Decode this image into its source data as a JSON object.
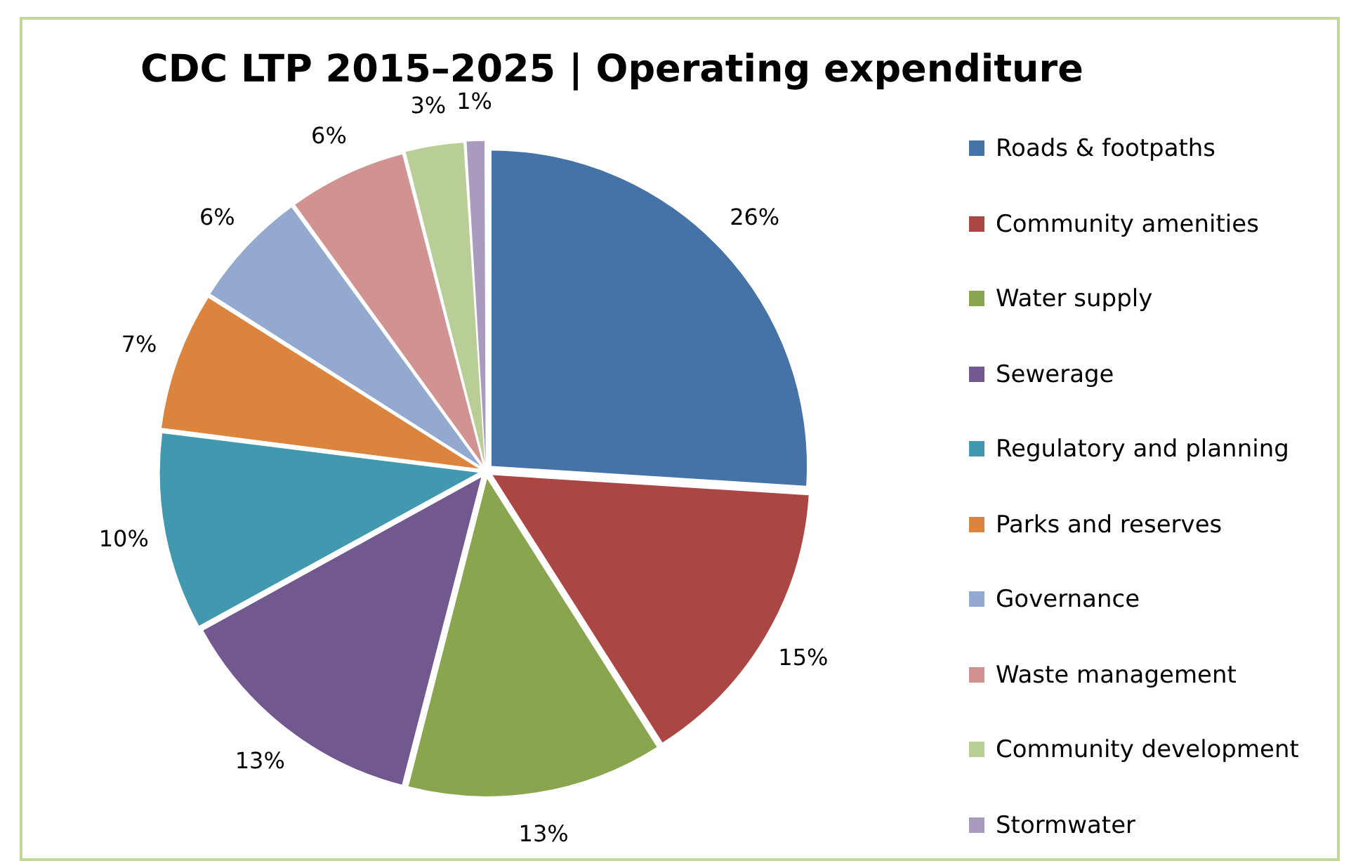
{
  "chart_data": {
    "type": "pie",
    "title": "CDC LTP 2015–2025 | Operating expenditure",
    "categories": [
      "Roads & footpaths",
      "Community amenities",
      "Water supply",
      "Sewerage",
      "Regulatory and planning",
      "Parks and reserves",
      "Governance",
      "Waste management",
      "Community development",
      "Stormwater"
    ],
    "values": [
      26,
      15,
      13,
      13,
      10,
      7,
      6,
      6,
      3,
      1
    ],
    "colors": [
      "#4572a7",
      "#aa4643",
      "#89a54e",
      "#71588f",
      "#4198af",
      "#db843d",
      "#93a9cf",
      "#d19392",
      "#b9cd96",
      "#a99bbd"
    ],
    "value_labels": [
      "26%",
      "15%",
      "13%",
      "13%",
      "10%",
      "7%",
      "6%",
      "6%",
      "3%",
      "1%"
    ],
    "legend": "right"
  }
}
